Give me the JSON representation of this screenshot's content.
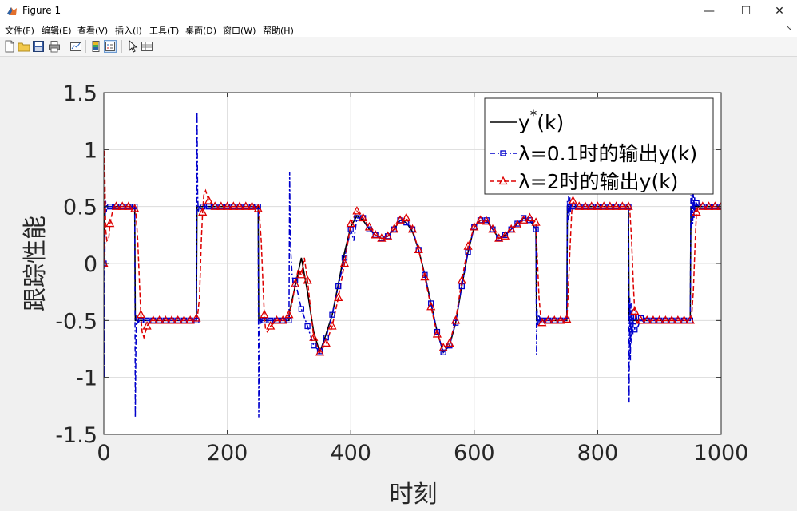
{
  "window": {
    "title": "Figure 1",
    "controls": {
      "minimize": "—",
      "maximize": "☐",
      "close": "✕"
    }
  },
  "menu": {
    "items": [
      "文件(F)",
      "编辑(E)",
      "查看(V)",
      "插入(I)",
      "工具(T)",
      "桌面(D)",
      "窗口(W)",
      "帮助(H)"
    ],
    "corner": "↘"
  },
  "toolbar": {
    "buttons": [
      "new-figure-icon",
      "open-file-icon",
      "save-icon",
      "print-icon",
      "link-plot-icon",
      "insert-colorbar-icon",
      "insert-legend-icon",
      "edit-plot-icon",
      "property-inspector-icon"
    ]
  },
  "colors": {
    "series1": "#0000cc",
    "series2": "#dd0000",
    "reference": "#000000",
    "grid": "#dcdcdc"
  },
  "chart_data": {
    "type": "line",
    "xlabel": "时刻",
    "ylabel": "跟踪性能",
    "xlim": [
      0,
      1000
    ],
    "ylim": [
      -1.5,
      1.5
    ],
    "xticks": [
      0,
      200,
      400,
      600,
      800,
      1000
    ],
    "yticks": [
      -1.5,
      -1,
      -0.5,
      0,
      0.5,
      1,
      1.5
    ],
    "xtick_labels": [
      "0",
      "200",
      "400",
      "600",
      "800",
      "1000"
    ],
    "ytick_labels": [
      "-1.5",
      "-1",
      "-0.5",
      "0",
      "0.5",
      "1",
      "1.5"
    ],
    "grid": true,
    "legend_position": "top-right",
    "series": [
      {
        "name": "y*(k)",
        "legend_main": "y",
        "legend_sup": "*",
        "legend_rest": "(k)",
        "color": "#000000",
        "style": "solid",
        "marker": "none",
        "x": [
          0,
          1,
          50,
          51,
          150,
          151,
          250,
          251,
          300,
          301,
          310,
          320,
          330,
          340,
          350,
          360,
          370,
          380,
          390,
          400,
          410,
          420,
          430,
          440,
          450,
          460,
          470,
          480,
          490,
          500,
          510,
          520,
          530,
          540,
          550,
          560,
          570,
          580,
          590,
          600,
          610,
          620,
          630,
          640,
          650,
          660,
          670,
          680,
          690,
          700,
          701,
          750,
          751,
          850,
          851,
          950,
          951,
          1000
        ],
        "y": [
          0,
          0.5,
          0.5,
          -0.5,
          -0.5,
          0.5,
          0.5,
          -0.5,
          -0.5,
          -0.42,
          -0.2,
          0.05,
          -0.25,
          -0.6,
          -0.78,
          -0.62,
          -0.45,
          -0.18,
          0.1,
          0.32,
          0.42,
          0.38,
          0.3,
          0.25,
          0.22,
          0.24,
          0.3,
          0.38,
          0.36,
          0.28,
          0.12,
          -0.1,
          -0.35,
          -0.6,
          -0.78,
          -0.72,
          -0.52,
          -0.2,
          0.1,
          0.32,
          0.38,
          0.38,
          0.3,
          0.22,
          0.25,
          0.3,
          0.35,
          0.4,
          0.38,
          0.3,
          -0.5,
          -0.5,
          0.5,
          0.5,
          -0.5,
          -0.5,
          0.5,
          0.5
        ]
      },
      {
        "name": "λ=0.1时的输出y(k)",
        "color": "#0000cc",
        "style": "dashdot",
        "marker": "square",
        "x": [
          0,
          1,
          2,
          3,
          4,
          5,
          6,
          8,
          10,
          15,
          20,
          30,
          40,
          50,
          51,
          52,
          53,
          55,
          58,
          60,
          65,
          70,
          80,
          90,
          100,
          110,
          120,
          130,
          140,
          150,
          151,
          152,
          153,
          155,
          158,
          160,
          170,
          180,
          190,
          200,
          210,
          220,
          230,
          240,
          250,
          251,
          252,
          253,
          255,
          258,
          260,
          270,
          280,
          290,
          300,
          301,
          302,
          303,
          305,
          308,
          310,
          320,
          330,
          340,
          350,
          360,
          370,
          380,
          390,
          400,
          405,
          410,
          420,
          430,
          440,
          450,
          460,
          470,
          480,
          490,
          500,
          510,
          520,
          530,
          540,
          550,
          560,
          570,
          580,
          590,
          600,
          610,
          620,
          630,
          640,
          650,
          660,
          670,
          680,
          690,
          700,
          701,
          702,
          703,
          705,
          708,
          710,
          715,
          720,
          730,
          740,
          750,
          751,
          752,
          753,
          754,
          755,
          756,
          757,
          758,
          760,
          765,
          770,
          780,
          790,
          800,
          810,
          820,
          830,
          840,
          850,
          851,
          852,
          853,
          854,
          855,
          856,
          857,
          858,
          860,
          862,
          865,
          870,
          875,
          880,
          890,
          900,
          910,
          920,
          930,
          940,
          950,
          951,
          952,
          953,
          954,
          955,
          956,
          957,
          958,
          960,
          965,
          970,
          980,
          990,
          1000
        ],
        "y": [
          0,
          -1.0,
          0.35,
          0.55,
          0.45,
          0.52,
          0.5,
          0.5,
          0.5,
          0.5,
          0.5,
          0.5,
          0.5,
          0.5,
          -1.35,
          -0.7,
          -0.45,
          -0.52,
          -0.5,
          -0.5,
          -0.5,
          -0.5,
          -0.5,
          -0.5,
          -0.5,
          -0.5,
          -0.5,
          -0.5,
          -0.5,
          -0.5,
          1.33,
          0.6,
          0.45,
          0.52,
          0.5,
          0.5,
          0.5,
          0.5,
          0.5,
          0.5,
          0.5,
          0.5,
          0.5,
          0.5,
          0.5,
          -1.35,
          -0.7,
          -0.45,
          -0.52,
          -0.5,
          -0.5,
          -0.5,
          -0.5,
          -0.5,
          -0.5,
          0.8,
          0.3,
          0.1,
          -0.1,
          -0.2,
          -0.15,
          -0.4,
          -0.55,
          -0.72,
          -0.77,
          -0.65,
          -0.45,
          -0.2,
          0.05,
          0.3,
          0.2,
          0.4,
          0.4,
          0.3,
          0.25,
          0.22,
          0.24,
          0.3,
          0.38,
          0.36,
          0.3,
          0.12,
          -0.1,
          -0.35,
          -0.6,
          -0.78,
          -0.72,
          -0.52,
          -0.2,
          0.1,
          0.32,
          0.38,
          0.38,
          0.3,
          0.22,
          0.25,
          0.3,
          0.35,
          0.4,
          0.38,
          0.3,
          -0.8,
          -0.4,
          -0.55,
          -0.45,
          -0.52,
          -0.5,
          -0.5,
          -0.5,
          -0.5,
          -0.5,
          -0.5,
          0.55,
          0.38,
          0.62,
          0.42,
          0.58,
          0.45,
          0.52,
          0.5,
          0.5,
          0.5,
          0.5,
          0.5,
          0.5,
          0.5,
          0.5,
          0.5,
          0.5,
          0.5,
          0.5,
          -1.22,
          -0.3,
          -0.85,
          -0.35,
          -0.7,
          -0.4,
          -0.62,
          -0.45,
          -0.58,
          -0.42,
          -0.56,
          -0.48,
          -0.52,
          -0.5,
          -0.5,
          -0.5,
          -0.5,
          -0.5,
          -0.5,
          -0.5,
          -0.5,
          0.6,
          0.3,
          0.65,
          0.35,
          0.62,
          0.4,
          0.58,
          0.45,
          0.53,
          0.48,
          0.5,
          0.5,
          0.5,
          0.5
        ]
      },
      {
        "name": "λ=2时的输出y(k)",
        "color": "#dd0000",
        "style": "dashed",
        "marker": "triangle",
        "x": [
          0,
          1,
          2,
          3,
          5,
          8,
          10,
          15,
          20,
          30,
          40,
          50,
          52,
          55,
          58,
          60,
          62,
          65,
          70,
          75,
          80,
          90,
          100,
          110,
          120,
          130,
          140,
          150,
          152,
          155,
          158,
          160,
          162,
          165,
          170,
          180,
          190,
          200,
          210,
          220,
          230,
          240,
          250,
          252,
          255,
          258,
          260,
          262,
          265,
          270,
          280,
          290,
          300,
          305,
          310,
          315,
          320,
          325,
          330,
          340,
          350,
          360,
          370,
          380,
          390,
          400,
          410,
          420,
          430,
          440,
          450,
          460,
          470,
          480,
          490,
          500,
          510,
          520,
          530,
          540,
          550,
          560,
          570,
          580,
          590,
          600,
          610,
          620,
          630,
          640,
          650,
          660,
          670,
          680,
          690,
          700,
          702,
          705,
          708,
          710,
          715,
          720,
          730,
          740,
          750,
          752,
          755,
          758,
          760,
          765,
          770,
          780,
          790,
          800,
          810,
          820,
          830,
          840,
          850,
          852,
          855,
          858,
          860,
          862,
          865,
          870,
          880,
          890,
          900,
          910,
          920,
          930,
          940,
          950,
          952,
          955,
          958,
          960,
          965,
          970,
          980,
          990,
          1000
        ],
        "y": [
          0,
          1.0,
          0.7,
          0.3,
          0.2,
          0.22,
          0.35,
          0.48,
          0.5,
          0.5,
          0.5,
          0.48,
          0.45,
          0.2,
          -0.2,
          -0.45,
          -0.6,
          -0.65,
          -0.55,
          -0.5,
          -0.5,
          -0.5,
          -0.5,
          -0.5,
          -0.5,
          -0.5,
          -0.5,
          -0.48,
          -0.45,
          -0.3,
          0.2,
          0.45,
          0.6,
          0.64,
          0.55,
          0.5,
          0.5,
          0.5,
          0.5,
          0.5,
          0.5,
          0.5,
          0.48,
          0.44,
          0.2,
          -0.2,
          -0.45,
          -0.58,
          -0.6,
          -0.55,
          -0.5,
          -0.5,
          -0.45,
          -0.35,
          -0.18,
          -0.05,
          -0.1,
          0.05,
          -0.15,
          -0.65,
          -0.78,
          -0.7,
          -0.55,
          -0.3,
          0.0,
          0.35,
          0.46,
          0.4,
          0.32,
          0.25,
          0.22,
          0.24,
          0.3,
          0.38,
          0.4,
          0.3,
          0.12,
          -0.12,
          -0.38,
          -0.62,
          -0.74,
          -0.7,
          -0.5,
          -0.15,
          0.15,
          0.32,
          0.38,
          0.37,
          0.3,
          0.22,
          0.24,
          0.3,
          0.34,
          0.38,
          0.4,
          0.36,
          0.1,
          -0.3,
          -0.48,
          -0.52,
          -0.5,
          -0.5,
          -0.5,
          -0.5,
          -0.49,
          -0.3,
          0.1,
          0.45,
          0.55,
          0.5,
          0.5,
          0.5,
          0.5,
          0.5,
          0.5,
          0.5,
          0.5,
          0.5,
          0.5,
          0.48,
          0.2,
          -0.2,
          -0.42,
          -0.5,
          -0.52,
          -0.5,
          -0.5,
          -0.5,
          -0.5,
          -0.5,
          -0.5,
          -0.5,
          -0.5,
          -0.5,
          -0.48,
          -0.24,
          0.2,
          0.45,
          0.53,
          0.5,
          0.5,
          0.5,
          0.5
        ]
      }
    ]
  }
}
